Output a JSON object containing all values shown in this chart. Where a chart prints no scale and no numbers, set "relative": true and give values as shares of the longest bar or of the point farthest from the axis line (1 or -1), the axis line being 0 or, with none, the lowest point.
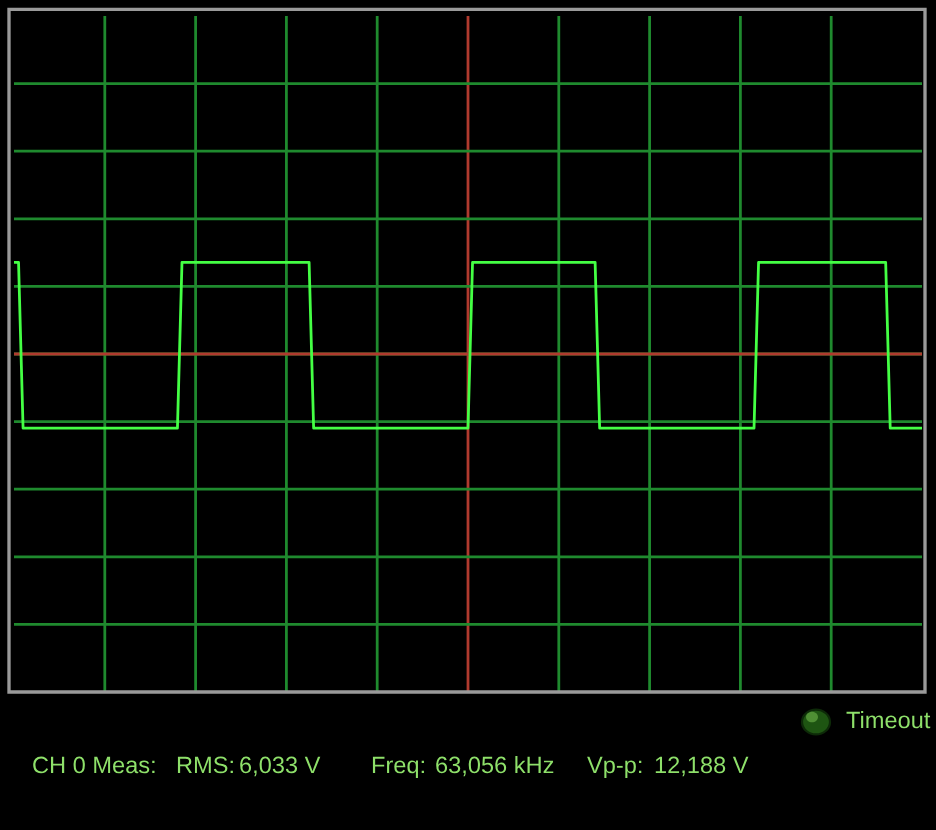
{
  "chart_data": {
    "type": "line",
    "relative": true,
    "grid": true,
    "categories": [
      null,
      null,
      null,
      null,
      null,
      null,
      null,
      null,
      null,
      null,
      null,
      null,
      null,
      null,
      null,
      null,
      null,
      null,
      null,
      null,
      null,
      null,
      null,
      null,
      null,
      null,
      null,
      null,
      null,
      null,
      null,
      null,
      null,
      null,
      null,
      null,
      null,
      null,
      null,
      null,
      null,
      null,
      null,
      null,
      null,
      null,
      null,
      null,
      null,
      null,
      null,
      null,
      null,
      null,
      null,
      null,
      null,
      null,
      null,
      null,
      null,
      null,
      null,
      null,
      null,
      null,
      null,
      null,
      null,
      null,
      null,
      null,
      null,
      null,
      null,
      null,
      null,
      null,
      null,
      null,
      null,
      null,
      null,
      null,
      null,
      null,
      null,
      null,
      null,
      null,
      null,
      null,
      null,
      null,
      null,
      null,
      null,
      null,
      null,
      null,
      null,
      null,
      null,
      null,
      null,
      null,
      null,
      null,
      null,
      null,
      null,
      null,
      null,
      null,
      null,
      null,
      null,
      null,
      null,
      null,
      null,
      null,
      null,
      null,
      null,
      null,
      null,
      null,
      null,
      null,
      null,
      null,
      null,
      null,
      null,
      null,
      null,
      null,
      null,
      null,
      null,
      null,
      null,
      null,
      null,
      null,
      null,
      null,
      null,
      null,
      null,
      null,
      null,
      null,
      null,
      null,
      null,
      null,
      null,
      null,
      null,
      null,
      null,
      null,
      null,
      null,
      null,
      null,
      null,
      null,
      null,
      null,
      null,
      null,
      null,
      null,
      null,
      null,
      null,
      null,
      null,
      null,
      null,
      null,
      null,
      null,
      null,
      null,
      null,
      null,
      null,
      null,
      null,
      null,
      null,
      null,
      null,
      null,
      null,
      null,
      null
    ],
    "series": [
      {
        "color": "#44ff44",
        "values": [
          1,
          1,
          -0.81,
          -0.81,
          -0.81,
          -0.81,
          -0.81,
          -0.81,
          -0.81,
          -0.81,
          -0.81,
          -0.81,
          -0.81,
          -0.81,
          -0.81,
          -0.81,
          -0.81,
          -0.81,
          -0.81,
          -0.81,
          -0.81,
          -0.81,
          -0.81,
          -0.81,
          -0.81,
          -0.81,
          -0.81,
          -0.81,
          -0.81,
          -0.81,
          -0.81,
          -0.81,
          -0.81,
          -0.81,
          -0.81,
          -0.81,
          -0.81,
          1,
          1,
          1,
          1,
          1,
          1,
          1,
          1,
          1,
          1,
          1,
          1,
          1,
          1,
          1,
          1,
          1,
          1,
          1,
          1,
          1,
          1,
          1,
          1,
          1,
          1,
          1,
          1,
          1,
          -0.81,
          -0.81,
          -0.81,
          -0.81,
          -0.81,
          -0.81,
          -0.81,
          -0.81,
          -0.81,
          -0.81,
          -0.81,
          -0.81,
          -0.81,
          -0.81,
          -0.81,
          -0.81,
          -0.81,
          -0.81,
          -0.81,
          -0.81,
          -0.81,
          -0.81,
          -0.81,
          -0.81,
          -0.81,
          -0.81,
          -0.81,
          -0.81,
          -0.81,
          -0.81,
          -0.81,
          -0.81,
          -0.81,
          -0.81,
          -0.81,
          1,
          1,
          1,
          1,
          1,
          1,
          1,
          1,
          1,
          1,
          1,
          1,
          1,
          1,
          1,
          1,
          1,
          1,
          1,
          1,
          1,
          1,
          1,
          1,
          1,
          1,
          1,
          1,
          -0.81,
          -0.81,
          -0.81,
          -0.81,
          -0.81,
          -0.81,
          -0.81,
          -0.81,
          -0.81,
          -0.81,
          -0.81,
          -0.81,
          -0.81,
          -0.81,
          -0.81,
          -0.81,
          -0.81,
          -0.81,
          -0.81,
          -0.81,
          -0.81,
          -0.81,
          -0.81,
          -0.81,
          -0.81,
          -0.81,
          -0.81,
          -0.81,
          -0.81,
          -0.81,
          -0.81,
          -0.81,
          -0.81,
          -0.81,
          -0.81,
          1,
          1,
          1,
          1,
          1,
          1,
          1,
          1,
          1,
          1,
          1,
          1,
          1,
          1,
          1,
          1,
          1,
          1,
          1,
          1,
          1,
          1,
          1,
          1,
          1,
          1,
          1,
          1,
          1,
          -0.81,
          -0.81,
          -0.81,
          -0.81,
          -0.81,
          -0.81,
          -0.81,
          -0.81
        ]
      }
    ],
    "ref_lines": [
      {
        "axis": "y",
        "value": 0,
        "color": "#b03a2e"
      }
    ],
    "annotations": [
      "Timeout",
      "CH 0 Meas:",
      "RMS:",
      "6,033 V",
      "Freq:",
      "63,056 kHz",
      "Vp-p:",
      "12,188 V"
    ]
  }
}
